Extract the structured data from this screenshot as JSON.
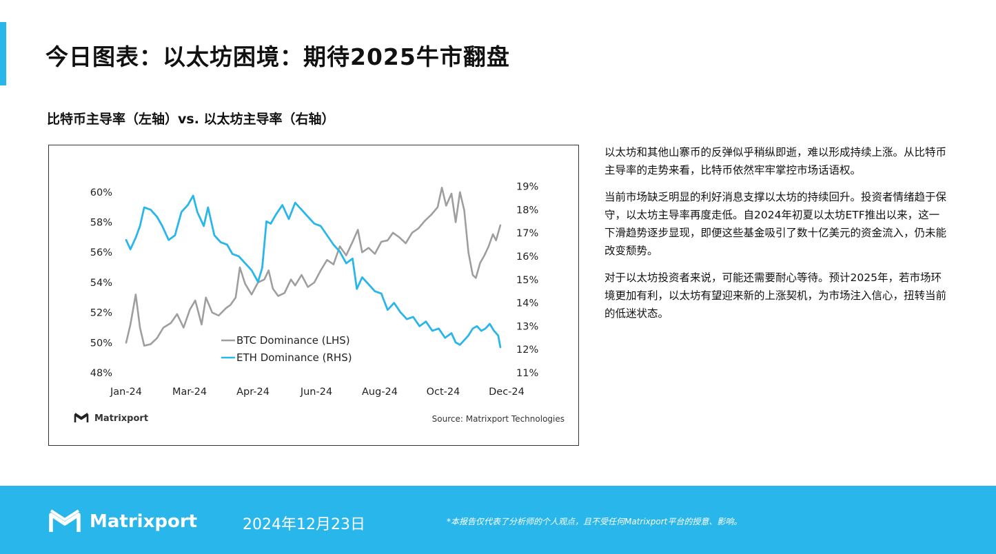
{
  "page": {
    "title": "今日图表：以太坊困境：期待2025牛市翻盘",
    "chart_title": "比特币主导率（左轴）vs. 以太坊主导率（右轴）",
    "chart_logo_text": "Matrixport",
    "chart_source": "Source: Matrixport Technologies",
    "paragraphs": [
      "以太坊和其他山寨币的反弹似乎稍纵即逝，难以形成持续上涨。从比特币主导率的走势来看，比特币依然牢牢掌控市场话语权。",
      "当前市场缺乏明显的利好消息支撑以太坊的持续回升。投资者情绪趋于保守，以太坊主导率再度走低。自2024年初夏以太坊ETF推出以来，这一下滑趋势逐步显现，即便这些基金吸引了数十亿美元的资金流入，仍未能改变颓势。",
      "对于以太坊投资者来说，可能还需要耐心等待。预计2025年，若市场环境更加有利，以太坊有望迎来新的上涨契机，为市场注入信心，扭转当前的低迷状态。"
    ],
    "footer": {
      "brand": "Matrixport",
      "date": "2024年12月23日",
      "disclaimer": "*本报告仅代表了分析师的个人观点，且不受任何Matrixport平台的授意、影响。"
    }
  },
  "colors": {
    "accent": "#29b6ea",
    "btc_line": "#9e9e9e",
    "eth_line": "#29b6ea"
  },
  "chart_data": {
    "type": "line",
    "x_tick_labels": [
      "Jan-24",
      "Mar-24",
      "Apr-24",
      "Jun-24",
      "Aug-24",
      "Oct-24",
      "Dec-24"
    ],
    "y_left_ticks": [
      "48%",
      "50%",
      "52%",
      "54%",
      "56%",
      "58%",
      "60%"
    ],
    "y_right_ticks": [
      "11%",
      "12%",
      "13%",
      "14%",
      "15%",
      "16%",
      "17%",
      "18%",
      "19%"
    ],
    "ylim_left": [
      48,
      61
    ],
    "ylim_right": [
      11,
      19.4
    ],
    "x_range": [
      "2024-01-01",
      "2024-12-20"
    ],
    "legend_placement": "bottom-left",
    "series": [
      {
        "name": "BTC Dominance (LHS)",
        "axis": "left",
        "points": [
          [
            "2024-01-01",
            50.0
          ],
          [
            "2024-01-05",
            51.2
          ],
          [
            "2024-01-10",
            53.2
          ],
          [
            "2024-01-14",
            51.0
          ],
          [
            "2024-01-18",
            49.8
          ],
          [
            "2024-01-24",
            49.9
          ],
          [
            "2024-01-30",
            50.3
          ],
          [
            "2024-02-05",
            51.0
          ],
          [
            "2024-02-12",
            51.3
          ],
          [
            "2024-02-18",
            51.9
          ],
          [
            "2024-02-24",
            51.0
          ],
          [
            "2024-03-01",
            52.2
          ],
          [
            "2024-03-06",
            52.8
          ],
          [
            "2024-03-12",
            51.2
          ],
          [
            "2024-03-16",
            53.0
          ],
          [
            "2024-03-22",
            52.0
          ],
          [
            "2024-03-28",
            51.8
          ],
          [
            "2024-04-04",
            52.3
          ],
          [
            "2024-04-08",
            52.5
          ],
          [
            "2024-04-13",
            53.0
          ],
          [
            "2024-04-17",
            55.0
          ],
          [
            "2024-04-22",
            53.9
          ],
          [
            "2024-04-28",
            53.2
          ],
          [
            "2024-05-04",
            54.0
          ],
          [
            "2024-05-10",
            54.2
          ],
          [
            "2024-05-14",
            54.8
          ],
          [
            "2024-05-18",
            53.6
          ],
          [
            "2024-05-23",
            53.1
          ],
          [
            "2024-05-29",
            53.3
          ],
          [
            "2024-06-04",
            54.2
          ],
          [
            "2024-06-08",
            53.8
          ],
          [
            "2024-06-14",
            54.5
          ],
          [
            "2024-06-20",
            53.7
          ],
          [
            "2024-06-26",
            54.0
          ],
          [
            "2024-07-02",
            54.8
          ],
          [
            "2024-07-08",
            55.5
          ],
          [
            "2024-07-14",
            55.2
          ],
          [
            "2024-07-20",
            56.4
          ],
          [
            "2024-07-26",
            55.8
          ],
          [
            "2024-08-01",
            56.7
          ],
          [
            "2024-08-06",
            57.5
          ],
          [
            "2024-08-10",
            56.0
          ],
          [
            "2024-08-16",
            56.3
          ],
          [
            "2024-08-22",
            55.9
          ],
          [
            "2024-08-28",
            56.7
          ],
          [
            "2024-09-03",
            56.8
          ],
          [
            "2024-09-08",
            57.3
          ],
          [
            "2024-09-14",
            57.0
          ],
          [
            "2024-09-20",
            56.6
          ],
          [
            "2024-09-26",
            57.3
          ],
          [
            "2024-10-02",
            57.6
          ],
          [
            "2024-10-08",
            58.1
          ],
          [
            "2024-10-14",
            58.5
          ],
          [
            "2024-10-20",
            59.0
          ],
          [
            "2024-10-24",
            60.3
          ],
          [
            "2024-10-28",
            59.1
          ],
          [
            "2024-11-02",
            59.9
          ],
          [
            "2024-11-06",
            58.0
          ],
          [
            "2024-11-10",
            60.0
          ],
          [
            "2024-11-14",
            58.8
          ],
          [
            "2024-11-18",
            56.0
          ],
          [
            "2024-11-22",
            54.5
          ],
          [
            "2024-11-25",
            54.3
          ],
          [
            "2024-11-29",
            55.3
          ],
          [
            "2024-12-03",
            55.8
          ],
          [
            "2024-12-07",
            56.4
          ],
          [
            "2024-12-11",
            57.2
          ],
          [
            "2024-12-14",
            56.8
          ],
          [
            "2024-12-18",
            57.8
          ]
        ]
      },
      {
        "name": "ETH Dominance (RHS)",
        "axis": "right",
        "points": [
          [
            "2024-01-01",
            16.7
          ],
          [
            "2024-01-05",
            16.3
          ],
          [
            "2024-01-10",
            16.8
          ],
          [
            "2024-01-14",
            17.3
          ],
          [
            "2024-01-18",
            18.1
          ],
          [
            "2024-01-24",
            18.0
          ],
          [
            "2024-01-30",
            17.7
          ],
          [
            "2024-02-04",
            17.3
          ],
          [
            "2024-02-10",
            16.7
          ],
          [
            "2024-02-16",
            16.9
          ],
          [
            "2024-02-22",
            17.9
          ],
          [
            "2024-02-28",
            18.2
          ],
          [
            "2024-03-04",
            18.6
          ],
          [
            "2024-03-08",
            17.9
          ],
          [
            "2024-03-14",
            17.3
          ],
          [
            "2024-03-18",
            18.1
          ],
          [
            "2024-03-24",
            16.9
          ],
          [
            "2024-03-30",
            16.6
          ],
          [
            "2024-04-05",
            16.5
          ],
          [
            "2024-04-10",
            16.1
          ],
          [
            "2024-04-16",
            16.0
          ],
          [
            "2024-04-22",
            15.7
          ],
          [
            "2024-04-28",
            15.4
          ],
          [
            "2024-05-04",
            14.9
          ],
          [
            "2024-05-08",
            15.5
          ],
          [
            "2024-05-12",
            17.5
          ],
          [
            "2024-05-16",
            17.4
          ],
          [
            "2024-05-21",
            17.8
          ],
          [
            "2024-05-27",
            18.2
          ],
          [
            "2024-06-02",
            17.6
          ],
          [
            "2024-06-08",
            18.3
          ],
          [
            "2024-06-14",
            18.0
          ],
          [
            "2024-06-20",
            17.7
          ],
          [
            "2024-06-26",
            17.4
          ],
          [
            "2024-07-02",
            17.3
          ],
          [
            "2024-07-08",
            16.9
          ],
          [
            "2024-07-14",
            16.5
          ],
          [
            "2024-07-20",
            16.2
          ],
          [
            "2024-07-26",
            15.7
          ],
          [
            "2024-08-01",
            15.9
          ],
          [
            "2024-08-05",
            14.6
          ],
          [
            "2024-08-10",
            15.1
          ],
          [
            "2024-08-16",
            14.8
          ],
          [
            "2024-08-22",
            14.5
          ],
          [
            "2024-08-28",
            14.4
          ],
          [
            "2024-09-03",
            13.7
          ],
          [
            "2024-09-09",
            14.0
          ],
          [
            "2024-09-15",
            13.6
          ],
          [
            "2024-09-21",
            13.3
          ],
          [
            "2024-09-27",
            13.4
          ],
          [
            "2024-10-03",
            13.0
          ],
          [
            "2024-10-09",
            13.2
          ],
          [
            "2024-10-15",
            12.8
          ],
          [
            "2024-10-21",
            12.9
          ],
          [
            "2024-10-27",
            12.5
          ],
          [
            "2024-11-02",
            12.7
          ],
          [
            "2024-11-06",
            12.3
          ],
          [
            "2024-11-10",
            12.2
          ],
          [
            "2024-11-14",
            12.4
          ],
          [
            "2024-11-18",
            12.6
          ],
          [
            "2024-11-22",
            12.9
          ],
          [
            "2024-11-26",
            13.0
          ],
          [
            "2024-11-30",
            12.8
          ],
          [
            "2024-12-04",
            12.9
          ],
          [
            "2024-12-08",
            13.1
          ],
          [
            "2024-12-12",
            12.8
          ],
          [
            "2024-12-16",
            12.6
          ],
          [
            "2024-12-18",
            12.1
          ]
        ]
      }
    ]
  }
}
